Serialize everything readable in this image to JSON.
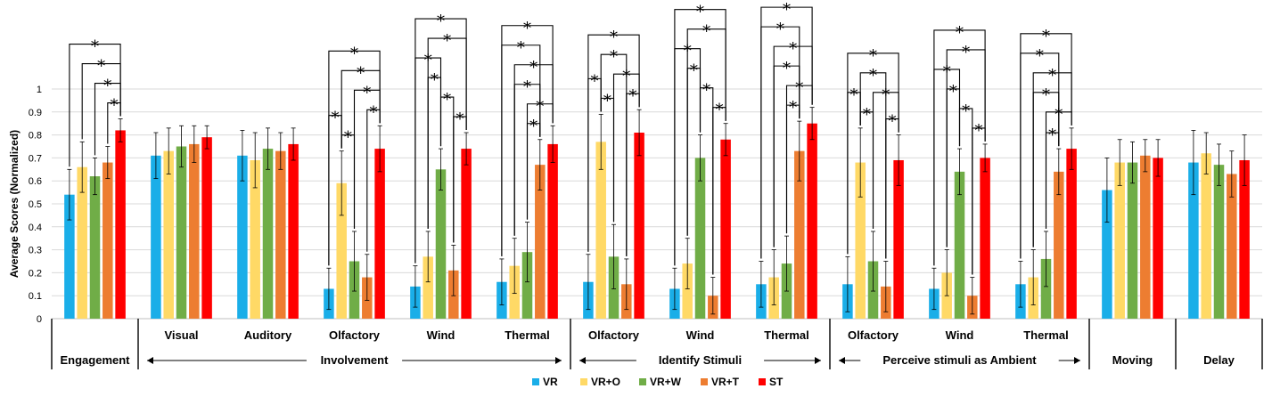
{
  "chart_data": {
    "type": "bar",
    "ylabel": "Average Scores (Normalized)",
    "ylim": [
      0,
      1
    ],
    "yticks": [
      "0",
      "0.1",
      "0.2",
      "0.3",
      "0.4",
      "0.5",
      "0.6",
      "0.7",
      "0.8",
      "0.9",
      "1"
    ],
    "grid": true,
    "legend_position": "bottom",
    "series_names": [
      "VR",
      "VR+O",
      "VR+W",
      "VR+T",
      "ST"
    ],
    "colors": [
      "#1AAEE8",
      "#FFD966",
      "#70AD47",
      "#ED7D31",
      "#FF0000"
    ],
    "significance_marker": "*",
    "categories": [
      "Engagement",
      "Visual",
      "Auditory",
      "Olfactory",
      "Wind",
      "Thermal",
      "Olfactory",
      "Wind",
      "Thermal",
      "Olfactory",
      "Wind",
      "Thermal",
      "Moving",
      "Delay"
    ],
    "values": [
      [
        0.54,
        0.66,
        0.62,
        0.68,
        0.82
      ],
      [
        0.71,
        0.73,
        0.75,
        0.76,
        0.79
      ],
      [
        0.71,
        0.69,
        0.74,
        0.73,
        0.76
      ],
      [
        0.13,
        0.59,
        0.25,
        0.18,
        0.74
      ],
      [
        0.14,
        0.27,
        0.65,
        0.21,
        0.74
      ],
      [
        0.16,
        0.23,
        0.29,
        0.67,
        0.76
      ],
      [
        0.16,
        0.77,
        0.27,
        0.15,
        0.81
      ],
      [
        0.13,
        0.24,
        0.7,
        0.1,
        0.78
      ],
      [
        0.15,
        0.18,
        0.24,
        0.73,
        0.85
      ],
      [
        0.15,
        0.68,
        0.25,
        0.14,
        0.69
      ],
      [
        0.13,
        0.2,
        0.64,
        0.1,
        0.7
      ],
      [
        0.15,
        0.18,
        0.26,
        0.64,
        0.74
      ],
      [
        0.56,
        0.68,
        0.68,
        0.71,
        0.7
      ],
      [
        0.68,
        0.72,
        0.67,
        0.63,
        0.69
      ]
    ],
    "errors": [
      [
        0.11,
        0.11,
        0.08,
        0.07,
        0.05
      ],
      [
        0.1,
        0.1,
        0.09,
        0.08,
        0.05
      ],
      [
        0.11,
        0.12,
        0.09,
        0.08,
        0.07
      ],
      [
        0.09,
        0.14,
        0.13,
        0.1,
        0.1
      ],
      [
        0.09,
        0.11,
        0.09,
        0.11,
        0.07
      ],
      [
        0.1,
        0.12,
        0.13,
        0.11,
        0.08
      ],
      [
        0.12,
        0.12,
        0.14,
        0.11,
        0.1
      ],
      [
        0.09,
        0.11,
        0.1,
        0.08,
        0.07
      ],
      [
        0.1,
        0.12,
        0.12,
        0.13,
        0.07
      ],
      [
        0.12,
        0.15,
        0.13,
        0.11,
        0.11
      ],
      [
        0.09,
        0.1,
        0.1,
        0.08,
        0.06
      ],
      [
        0.1,
        0.12,
        0.12,
        0.1,
        0.09
      ],
      [
        0.14,
        0.1,
        0.09,
        0.07,
        0.08
      ],
      [
        0.14,
        0.09,
        0.09,
        0.1,
        0.11
      ]
    ],
    "significance": [
      [
        [
          0,
          4
        ],
        [
          1,
          4
        ],
        [
          2,
          4
        ],
        [
          3,
          4
        ]
      ],
      [],
      [],
      [
        [
          0,
          1
        ],
        [
          1,
          2
        ],
        [
          0,
          4
        ],
        [
          1,
          4
        ],
        [
          2,
          4
        ],
        [
          3,
          4
        ]
      ],
      [
        [
          0,
          2
        ],
        [
          1,
          2
        ],
        [
          2,
          3
        ],
        [
          0,
          4
        ],
        [
          1,
          4
        ],
        [
          3,
          4
        ]
      ],
      [
        [
          0,
          3
        ],
        [
          1,
          3
        ],
        [
          2,
          3
        ],
        [
          0,
          4
        ],
        [
          1,
          4
        ],
        [
          2,
          4
        ]
      ],
      [
        [
          0,
          1
        ],
        [
          1,
          2
        ],
        [
          1,
          3
        ],
        [
          0,
          4
        ],
        [
          2,
          4
        ],
        [
          3,
          4
        ]
      ],
      [
        [
          0,
          2
        ],
        [
          1,
          2
        ],
        [
          2,
          3
        ],
        [
          0,
          4
        ],
        [
          1,
          4
        ],
        [
          3,
          4
        ]
      ],
      [
        [
          0,
          3
        ],
        [
          1,
          3
        ],
        [
          2,
          3
        ],
        [
          0,
          4
        ],
        [
          1,
          4
        ],
        [
          2,
          4
        ]
      ],
      [
        [
          0,
          1
        ],
        [
          1,
          2
        ],
        [
          1,
          3
        ],
        [
          0,
          4
        ],
        [
          2,
          4
        ],
        [
          3,
          4
        ]
      ],
      [
        [
          0,
          2
        ],
        [
          1,
          2
        ],
        [
          2,
          3
        ],
        [
          0,
          4
        ],
        [
          1,
          4
        ],
        [
          3,
          4
        ]
      ],
      [
        [
          0,
          3
        ],
        [
          1,
          3
        ],
        [
          2,
          3
        ],
        [
          0,
          4
        ],
        [
          1,
          4
        ],
        [
          2,
          4
        ]
      ],
      [],
      []
    ],
    "group_labels": [
      {
        "label": "Engagement",
        "from": 0,
        "to": 0,
        "arrow": false
      },
      {
        "label": "Involvement",
        "from": 1,
        "to": 5,
        "arrow": true
      },
      {
        "label": "Identify Stimuli",
        "from": 6,
        "to": 8,
        "arrow": true
      },
      {
        "label": "Perceive stimuli as Ambient",
        "from": 9,
        "to": 11,
        "arrow": true
      },
      {
        "label": "Moving",
        "from": 12,
        "to": 12,
        "arrow": false
      },
      {
        "label": "Delay",
        "from": 13,
        "to": 13,
        "arrow": false
      }
    ]
  }
}
